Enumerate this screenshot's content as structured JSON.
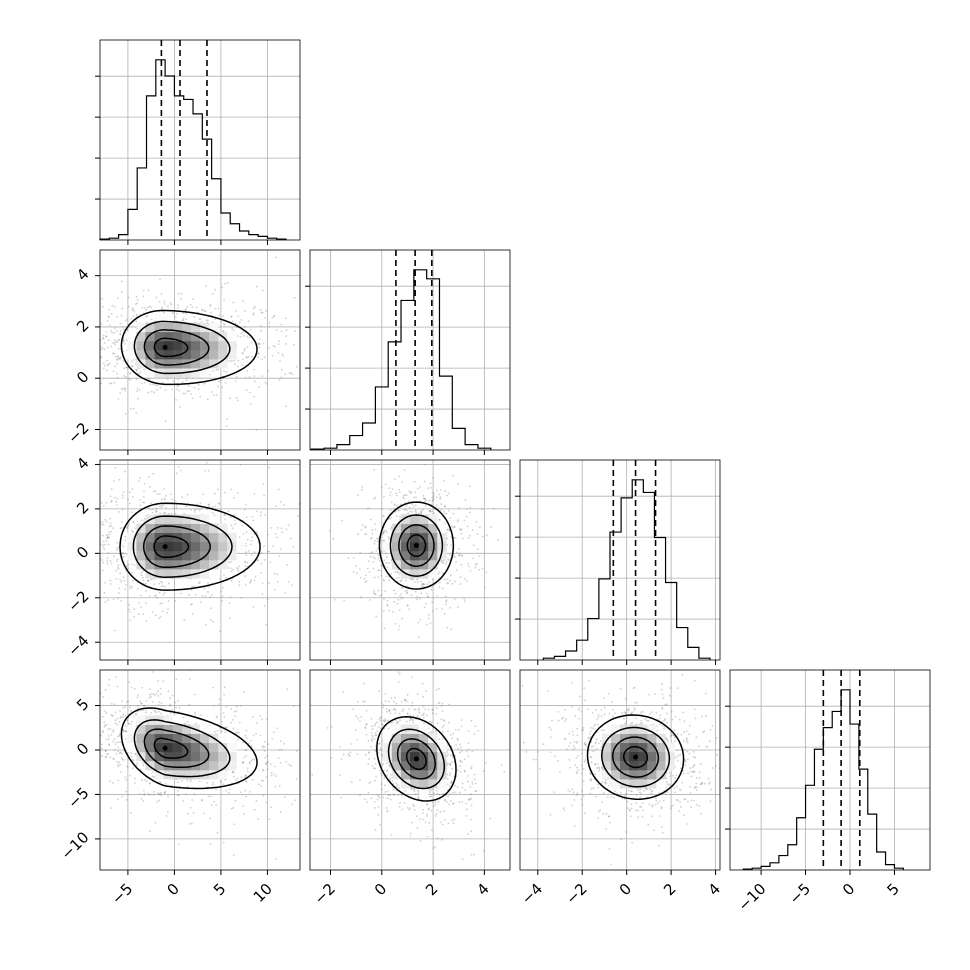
{
  "chart_data": {
    "type": "corner",
    "n_params": 4,
    "params": [
      {
        "ticks": [
          -5,
          0,
          5,
          10
        ],
        "range": [
          -8,
          13.5
        ]
      },
      {
        "ticks": [
          -2,
          0,
          2,
          4
        ],
        "range": [
          -2.8,
          5.0
        ]
      },
      {
        "ticks": [
          -4,
          -2,
          0,
          2,
          4
        ],
        "range": [
          -4.8,
          4.2
        ]
      },
      {
        "ticks": [
          -10,
          -5,
          0,
          5
        ],
        "range": [
          -13.5,
          9.0
        ]
      }
    ],
    "histograms": [
      {
        "bins": [
          -7.5,
          -6.5,
          -5.5,
          -4.5,
          -3.5,
          -2.5,
          -1.5,
          -0.5,
          0.5,
          1.5,
          2.5,
          3.5,
          4.5,
          5.5,
          6.5,
          7.5,
          8.5,
          9.5,
          10.5,
          11.5
        ],
        "counts": [
          0.5,
          1,
          3,
          17,
          40,
          80,
          100,
          91,
          80,
          78,
          70,
          56,
          34,
          15,
          9,
          5,
          3,
          2,
          1,
          0.5
        ],
        "quantiles": [
          -1.4,
          0.6,
          3.5
        ]
      },
      {
        "bins": [
          -2.5,
          -2.0,
          -1.5,
          -1.0,
          -0.5,
          0.0,
          0.5,
          1.0,
          1.5,
          2.0,
          2.5,
          3.0,
          3.5,
          4.0
        ],
        "counts": [
          0.5,
          1,
          3,
          8,
          15,
          35,
          60,
          83,
          100,
          95,
          41,
          12,
          3,
          1
        ],
        "quantiles": [
          0.55,
          1.3,
          1.95
        ]
      },
      {
        "bins": [
          -3.5,
          -3.0,
          -2.5,
          -2.0,
          -1.5,
          -1.0,
          -0.5,
          0.0,
          0.5,
          1.0,
          1.5,
          2.0,
          2.5,
          3.0,
          3.5
        ],
        "counts": [
          1,
          2,
          5,
          11,
          23,
          45,
          71,
          90,
          100,
          93,
          68,
          43,
          18,
          7,
          1
        ],
        "quantiles": [
          -0.6,
          0.4,
          1.3
        ]
      },
      {
        "bins": [
          -11.5,
          -10.5,
          -9.5,
          -8.5,
          -7.5,
          -6.5,
          -5.5,
          -4.5,
          -3.5,
          -2.5,
          -1.5,
          -0.5,
          0.5,
          1.5,
          2.5,
          3.5,
          4.5,
          5.5
        ],
        "counts": [
          0.5,
          1,
          2,
          4,
          8,
          14,
          29,
          47,
          67,
          79,
          88,
          100,
          81,
          56,
          31,
          10,
          3,
          1
        ],
        "quantiles": [
          -3.0,
          -1.0,
          1.1
        ]
      }
    ],
    "joint": [
      {
        "row": 1,
        "col": 0,
        "mode": [
          -1.0,
          1.2
        ],
        "sx": 3.0,
        "sy": 0.7,
        "rho": -0.05,
        "skew_x": 0.6
      },
      {
        "row": 2,
        "col": 0,
        "mode": [
          -1.0,
          0.3
        ],
        "sx": 3.1,
        "sy": 0.95,
        "rho": 0.0,
        "skew_x": 0.6
      },
      {
        "row": 2,
        "col": 1,
        "mode": [
          1.35,
          0.35
        ],
        "sx": 0.7,
        "sy": 0.95,
        "rho": 0.0,
        "skew_x": 0.0
      },
      {
        "row": 3,
        "col": 0,
        "mode": [
          -1.0,
          0.2
        ],
        "sx": 3.0,
        "sy": 2.2,
        "rho": -0.35,
        "skew_x": 0.6
      },
      {
        "row": 3,
        "col": 1,
        "mode": [
          1.35,
          -1.0
        ],
        "sx": 0.75,
        "sy": 2.3,
        "rho": -0.25,
        "skew_x": 0.0
      },
      {
        "row": 3,
        "col": 2,
        "mode": [
          0.4,
          -0.8
        ],
        "sx": 1.05,
        "sy": 2.3,
        "rho": -0.05,
        "skew_x": 0.0
      }
    ],
    "grid": true,
    "colors": {
      "line": "#000000",
      "grid": "#b0b0b0",
      "points": "#777777"
    }
  }
}
